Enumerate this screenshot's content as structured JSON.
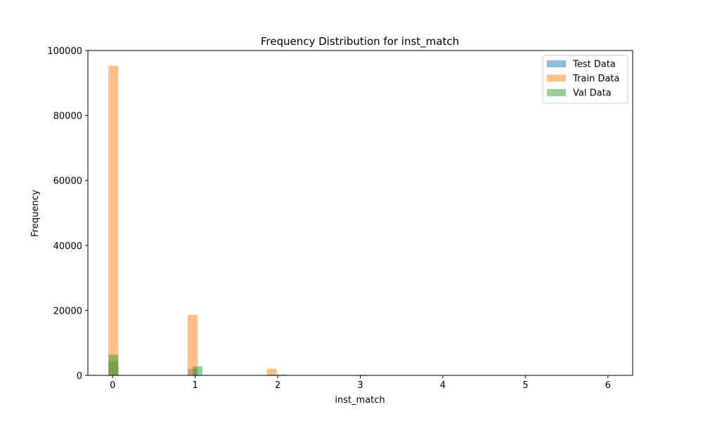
{
  "chart_data": {
    "type": "bar",
    "title": "Frequency Distribution for inst_match",
    "xlabel": "inst_match",
    "ylabel": "Frequency",
    "xlim": [
      -0.3,
      6.3
    ],
    "ylim": [
      0,
      100000
    ],
    "x_ticks": [
      0,
      1,
      2,
      3,
      4,
      5,
      6
    ],
    "y_ticks": [
      0,
      20000,
      40000,
      60000,
      80000,
      100000
    ],
    "bin_width": 0.12,
    "grid": false,
    "legend_position": "top-right",
    "series": [
      {
        "name": "Test Data",
        "color": "#1f77b4",
        "opacity": 0.5,
        "bins": [
          {
            "x": 0.0,
            "value": 4300
          },
          {
            "x": 0.96,
            "value": 2000
          },
          {
            "x": 1.92,
            "value": 250
          }
        ]
      },
      {
        "name": "Train Data",
        "color": "#ff7f0e",
        "opacity": 0.5,
        "bins": [
          {
            "x": 0.0,
            "value": 95300
          },
          {
            "x": 0.96,
            "value": 18600
          },
          {
            "x": 1.92,
            "value": 2000
          },
          {
            "x": 3.0,
            "value": 250
          },
          {
            "x": 6.0,
            "value": 30
          }
        ]
      },
      {
        "name": "Val Data",
        "color": "#2ca02c",
        "opacity": 0.5,
        "bins": [
          {
            "x": 0.0,
            "value": 6400
          },
          {
            "x": 1.02,
            "value": 2800
          },
          {
            "x": 2.04,
            "value": 300
          }
        ]
      }
    ]
  }
}
